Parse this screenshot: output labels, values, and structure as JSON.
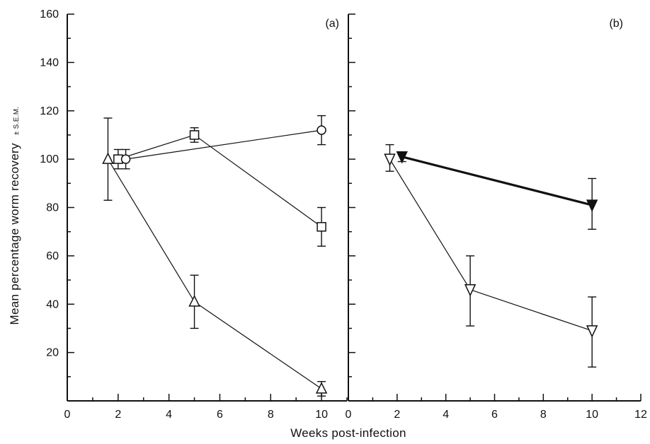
{
  "chart_data": {
    "type": "line",
    "xlabel": "Weeks post-infection",
    "ylabel": "Mean percentage  worm recovery",
    "ylabel_suffix": "± S.E.M.",
    "ylim": [
      0,
      160
    ],
    "yticks": [
      20,
      40,
      60,
      80,
      100,
      120,
      140,
      160
    ],
    "panels": [
      {
        "label": "(a)",
        "xlim": [
          0,
          11
        ],
        "xticks": [
          0,
          2,
          4,
          6,
          8,
          10
        ],
        "series": [
          {
            "marker": "triangle-up",
            "filled": false,
            "thick": false,
            "points": [
              {
                "x": 1.6,
                "y": 100,
                "err_lo": 83,
                "err_hi": 117
              },
              {
                "x": 5,
                "y": 41,
                "err_lo": 30,
                "err_hi": 52
              },
              {
                "x": 10,
                "y": 5,
                "err_lo": 2,
                "err_hi": 8
              }
            ]
          },
          {
            "marker": "square",
            "filled": false,
            "thick": false,
            "points": [
              {
                "x": 2,
                "y": 100,
                "err_lo": 96,
                "err_hi": 104
              },
              {
                "x": 5,
                "y": 110,
                "err_lo": 107,
                "err_hi": 113
              },
              {
                "x": 10,
                "y": 72,
                "err_lo": 64,
                "err_hi": 80
              }
            ]
          },
          {
            "marker": "circle",
            "filled": false,
            "thick": false,
            "points": [
              {
                "x": 2.3,
                "y": 100,
                "err_lo": 96,
                "err_hi": 104
              },
              {
                "x": 10,
                "y": 112,
                "err_lo": 106,
                "err_hi": 118
              }
            ]
          }
        ]
      },
      {
        "label": "(b)",
        "xlim": [
          0,
          12
        ],
        "xticks": [
          0,
          2,
          4,
          6,
          8,
          10,
          12
        ],
        "series": [
          {
            "marker": "triangle-down",
            "filled": false,
            "thick": false,
            "points": [
              {
                "x": 1.7,
                "y": 100,
                "err_lo": 95,
                "err_hi": 106
              },
              {
                "x": 5,
                "y": 46,
                "err_lo": 31,
                "err_hi": 60
              },
              {
                "x": 10,
                "y": 29,
                "err_lo": 14,
                "err_hi": 43
              }
            ]
          },
          {
            "marker": "triangle-down",
            "filled": true,
            "thick": true,
            "points": [
              {
                "x": 2.2,
                "y": 101,
                "err_lo": 99,
                "err_hi": 103
              },
              {
                "x": 10,
                "y": 81,
                "err_lo": 71,
                "err_hi": 92
              }
            ]
          }
        ]
      }
    ]
  }
}
